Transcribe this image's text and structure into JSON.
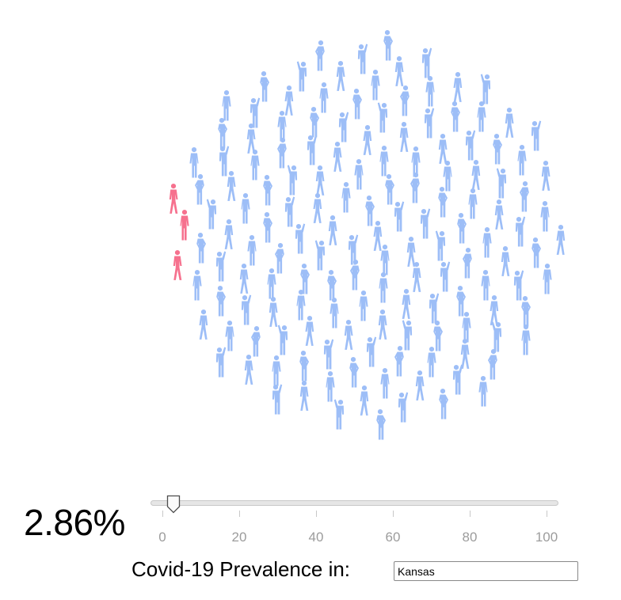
{
  "prevalence": {
    "value_label": "2.86%",
    "value": 2.86,
    "label": "Covid-19 Prevalence in:",
    "state": "Kansas"
  },
  "slider": {
    "min": 0,
    "max": 100,
    "ticks": [
      "0",
      "20",
      "40",
      "60",
      "80",
      "100"
    ],
    "value": 2.86
  },
  "crowd": {
    "healthy_color": "#9DBEF7",
    "infected_color": "#F6718E",
    "total_count": 150,
    "infected_count": 3
  }
}
